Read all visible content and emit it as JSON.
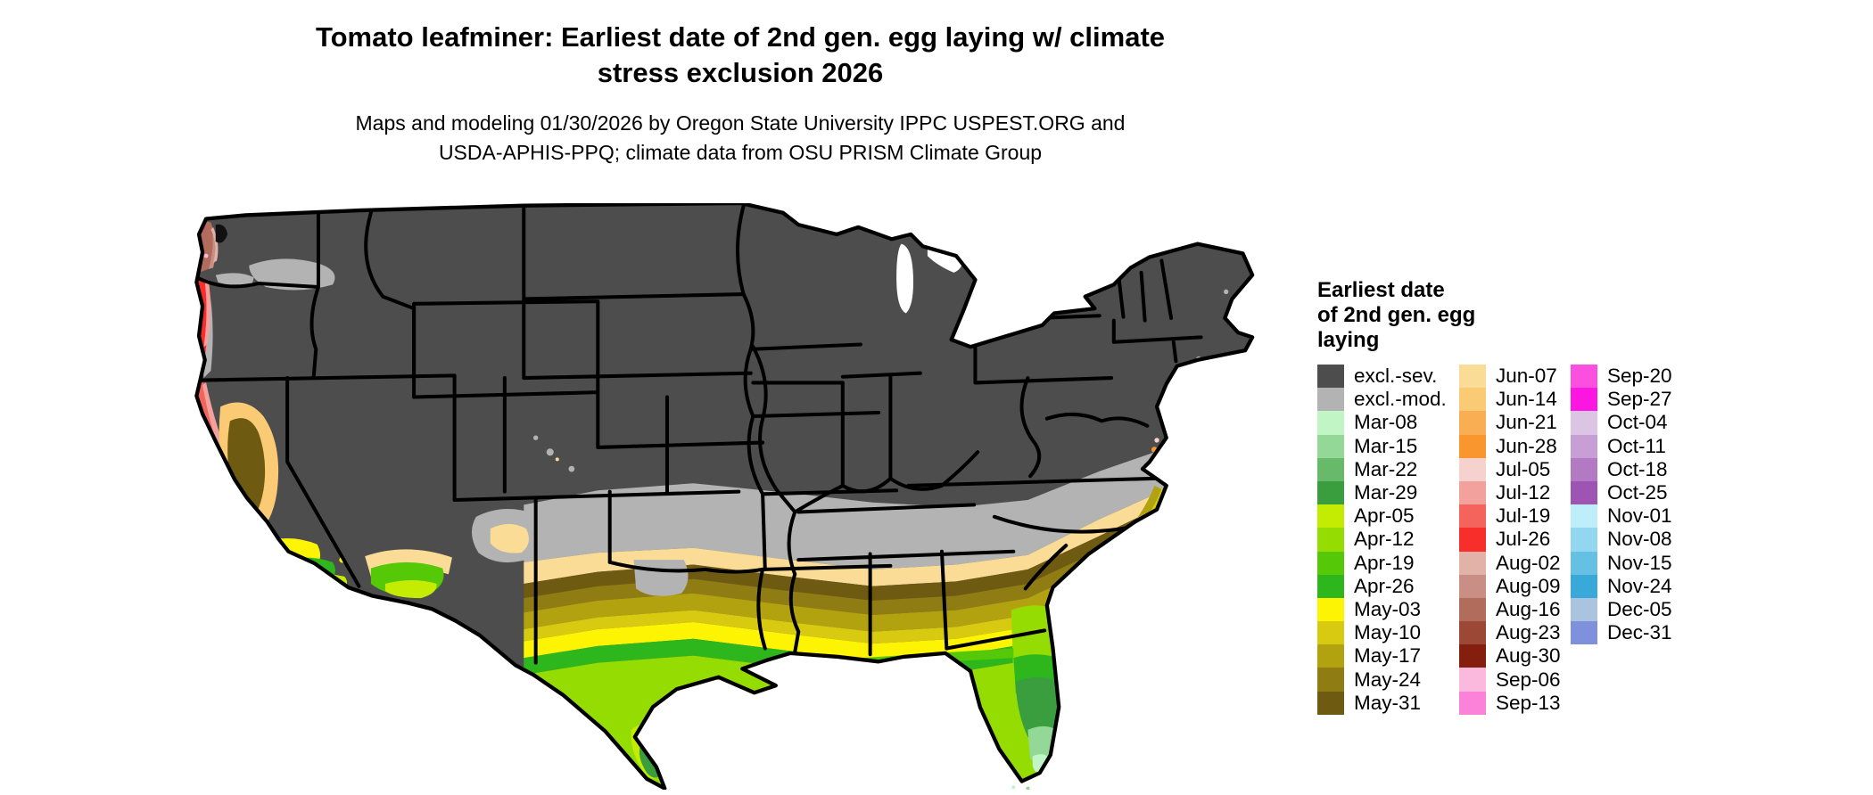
{
  "header": {
    "title_line1": "Tomato leafminer: Earliest date of 2nd gen. egg laying w/ climate",
    "title_line2": "stress exclusion 2026",
    "subtitle_line1": "Maps and modeling 01/30/2026 by Oregon State University IPPC USPEST.ORG and",
    "subtitle_line2": "USDA-APHIS-PPQ; climate data from OSU PRISM Climate Group"
  },
  "legend": {
    "title_line1": "Earliest date",
    "title_line2": "of 2nd gen. egg",
    "title_line3": "laying",
    "columns": [
      [
        {
          "label": "excl.-sev.",
          "color": "#4d4d4d"
        },
        {
          "label": "excl.-mod.",
          "color": "#b3b3b3"
        },
        {
          "label": "Mar-08",
          "color": "#c2f5c6"
        },
        {
          "label": "Mar-15",
          "color": "#94d897"
        },
        {
          "label": "Mar-22",
          "color": "#68ba6b"
        },
        {
          "label": "Mar-29",
          "color": "#3a9d3e"
        },
        {
          "label": "Apr-05",
          "color": "#c4ec02"
        },
        {
          "label": "Apr-12",
          "color": "#95dc02"
        },
        {
          "label": "Apr-19",
          "color": "#55c908"
        },
        {
          "label": "Apr-26",
          "color": "#2eb71c"
        },
        {
          "label": "May-03",
          "color": "#fdf403"
        },
        {
          "label": "May-10",
          "color": "#d8ca10"
        },
        {
          "label": "May-17",
          "color": "#b3a210"
        },
        {
          "label": "May-24",
          "color": "#8f7c13"
        },
        {
          "label": "May-31",
          "color": "#6e5a10"
        }
      ],
      [
        {
          "label": "Jun-07",
          "color": "#fbdc96"
        },
        {
          "label": "Jun-14",
          "color": "#fbca75"
        },
        {
          "label": "Jun-21",
          "color": "#faae53"
        },
        {
          "label": "Jun-28",
          "color": "#f9962e"
        },
        {
          "label": "Jul-05",
          "color": "#f5d2cd"
        },
        {
          "label": "Jul-12",
          "color": "#f2a19c"
        },
        {
          "label": "Jul-19",
          "color": "#f4645c"
        },
        {
          "label": "Jul-26",
          "color": "#f72e29"
        },
        {
          "label": "Aug-02",
          "color": "#e0b2a8"
        },
        {
          "label": "Aug-09",
          "color": "#c98f84"
        },
        {
          "label": "Aug-16",
          "color": "#b26c5c"
        },
        {
          "label": "Aug-23",
          "color": "#9b4936"
        },
        {
          "label": "Aug-30",
          "color": "#841f10"
        },
        {
          "label": "Sep-06",
          "color": "#fcb9de"
        },
        {
          "label": "Sep-13",
          "color": "#fb82d8"
        }
      ],
      [
        {
          "label": "Sep-20",
          "color": "#fb4fe0"
        },
        {
          "label": "Sep-27",
          "color": "#fc16e2"
        },
        {
          "label": "Oct-04",
          "color": "#dcc4e4"
        },
        {
          "label": "Oct-11",
          "color": "#c79fd4"
        },
        {
          "label": "Oct-18",
          "color": "#b37ac4"
        },
        {
          "label": "Oct-25",
          "color": "#9e54b3"
        },
        {
          "label": "Nov-01",
          "color": "#bfeefb"
        },
        {
          "label": "Nov-08",
          "color": "#92d7ef"
        },
        {
          "label": "Nov-15",
          "color": "#65c0e4"
        },
        {
          "label": "Nov-24",
          "color": "#38a9d9"
        },
        {
          "label": "Dec-05",
          "color": "#aac4e0"
        },
        {
          "label": "Dec-31",
          "color": "#7f90dd"
        }
      ]
    ]
  },
  "chart_data": {
    "type": "heatmap",
    "subtype": "us-choropleth-raster-map",
    "title": "Tomato leafminer: Earliest date of 2nd gen. egg laying w/ climate stress exclusion 2026",
    "legend_title": "Earliest date of 2nd gen. egg laying",
    "categories": [
      "excl.-sev.",
      "excl.-mod.",
      "Mar-08",
      "Mar-15",
      "Mar-22",
      "Mar-29",
      "Apr-05",
      "Apr-12",
      "Apr-19",
      "Apr-26",
      "May-03",
      "May-10",
      "May-17",
      "May-24",
      "May-31",
      "Jun-07",
      "Jun-14",
      "Jun-21",
      "Jun-28",
      "Jul-05",
      "Jul-12",
      "Jul-19",
      "Jul-26",
      "Aug-02",
      "Aug-09",
      "Aug-16",
      "Aug-23",
      "Aug-30",
      "Sep-06",
      "Sep-13",
      "Sep-20",
      "Sep-27",
      "Oct-04",
      "Oct-11",
      "Oct-18",
      "Oct-25",
      "Nov-01",
      "Nov-08",
      "Nov-15",
      "Nov-24",
      "Dec-05",
      "Dec-31"
    ],
    "colors": [
      "#4d4d4d",
      "#b3b3b3",
      "#c2f5c6",
      "#94d897",
      "#68ba6b",
      "#3a9d3e",
      "#c4ec02",
      "#95dc02",
      "#55c908",
      "#2eb71c",
      "#fdf403",
      "#d8ca10",
      "#b3a210",
      "#8f7c13",
      "#6e5a10",
      "#fbdc96",
      "#fbca75",
      "#faae53",
      "#f9962e",
      "#f5d2cd",
      "#f2a19c",
      "#f4645c",
      "#f72e29",
      "#e0b2a8",
      "#c98f84",
      "#b26c5c",
      "#9b4936",
      "#841f10",
      "#fcb9de",
      "#fb82d8",
      "#fb4fe0",
      "#fc16e2",
      "#dcc4e4",
      "#c79fd4",
      "#b37ac4",
      "#9e54b3",
      "#bfeefb",
      "#92d7ef",
      "#65c0e4",
      "#38a9d9",
      "#aac4e0",
      "#7f90dd"
    ],
    "notes": "Northern and interior US excluded-severe (dark gray); excluded-moderate gray band through mid-South and inland Northwest; Jun band then May olive/yellow bands then Apr greens toward Gulf Coast; Mar dates in south Texas and south Florida; Jul reds on Oregon/N-California coast; Aug browns on Washington coast with Sep magenta specks"
  }
}
